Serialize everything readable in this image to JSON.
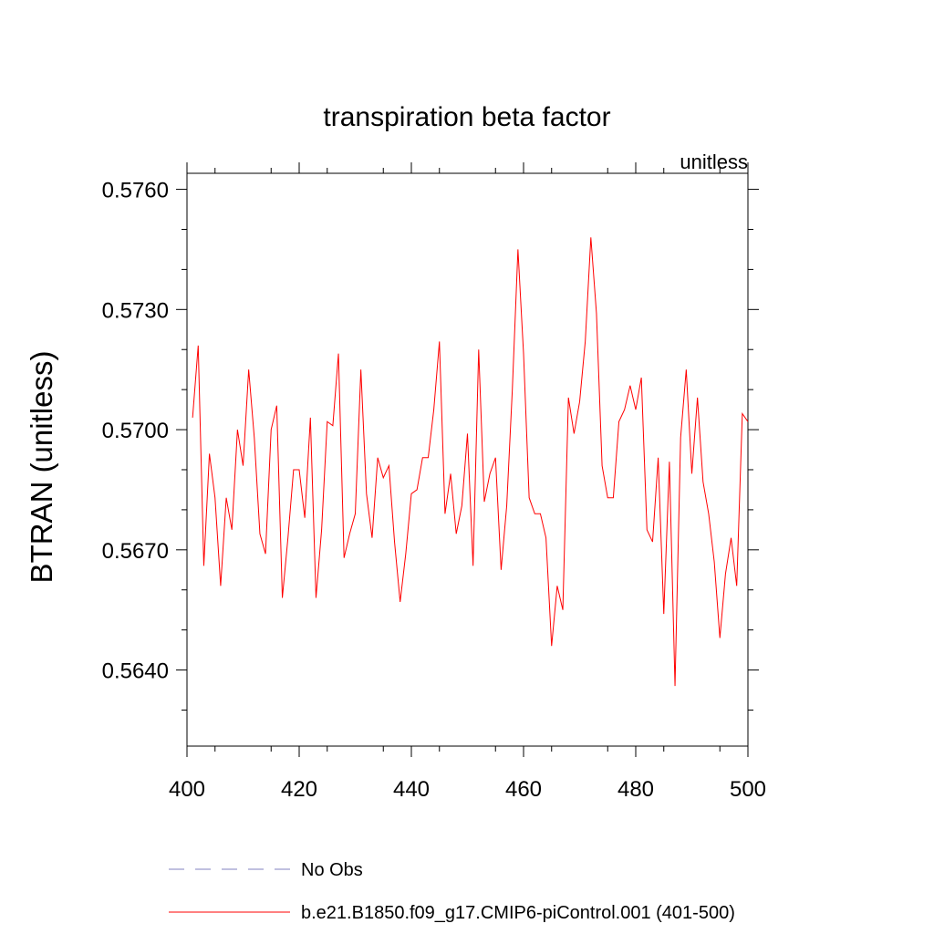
{
  "chart_data": {
    "type": "line",
    "title": "transpiration beta factor",
    "units_label": "unitless",
    "xlabel": "",
    "ylabel": "BTRAN  (unitless)",
    "xlim": [
      400,
      500
    ],
    "ylim": [
      0.5621,
      0.5764
    ],
    "x_ticks": [
      400,
      420,
      440,
      460,
      480,
      500
    ],
    "x_tick_labels": [
      "400",
      "420",
      "440",
      "460",
      "480",
      "500"
    ],
    "y_ticks": [
      0.576,
      0.573,
      0.57,
      0.567,
      0.564
    ],
    "y_tick_labels": [
      "0.5760",
      "0.5730",
      "0.5700",
      "0.5670",
      "0.5640"
    ],
    "grid": false,
    "legend_position": "bottom",
    "legend": [
      {
        "label": "No Obs",
        "color": "#8080c0",
        "style": "dashed"
      },
      {
        "label": "b.e21.B1850.f09_g17.CMIP6-piControl.001 (401-500)",
        "color": "#ff0000",
        "style": "solid"
      }
    ],
    "series": [
      {
        "name": "b.e21.B1850.f09_g17.CMIP6-piControl.001 (401-500)",
        "color": "#ff0000",
        "x": [
          401,
          402,
          403,
          404,
          405,
          406,
          407,
          408,
          409,
          410,
          411,
          412,
          413,
          414,
          415,
          416,
          417,
          418,
          419,
          420,
          421,
          422,
          423,
          424,
          425,
          426,
          427,
          428,
          429,
          430,
          431,
          432,
          433,
          434,
          435,
          436,
          437,
          438,
          439,
          440,
          441,
          442,
          443,
          444,
          445,
          446,
          447,
          448,
          449,
          450,
          451,
          452,
          453,
          454,
          455,
          456,
          457,
          458,
          459,
          460,
          461,
          462,
          463,
          464,
          465,
          466,
          467,
          468,
          469,
          470,
          471,
          472,
          473,
          474,
          475,
          476,
          477,
          478,
          479,
          480,
          481,
          482,
          483,
          484,
          485,
          486,
          487,
          488,
          489,
          490,
          491,
          492,
          493,
          494,
          495,
          496,
          497,
          498,
          499,
          500
        ],
        "values": [
          0.5703,
          0.5721,
          0.5666,
          0.5694,
          0.5683,
          0.5661,
          0.5683,
          0.5675,
          0.57,
          0.5691,
          0.5715,
          0.5698,
          0.5674,
          0.5669,
          0.57,
          0.5706,
          0.5658,
          0.5673,
          0.569,
          0.569,
          0.5678,
          0.5703,
          0.5658,
          0.5675,
          0.5702,
          0.5701,
          0.5719,
          0.5668,
          0.5674,
          0.5679,
          0.5715,
          0.5684,
          0.5673,
          0.5693,
          0.5688,
          0.5691,
          0.5672,
          0.5657,
          0.5669,
          0.5684,
          0.5685,
          0.5693,
          0.5693,
          0.5705,
          0.5722,
          0.5679,
          0.5689,
          0.5674,
          0.5681,
          0.5699,
          0.5666,
          0.572,
          0.5682,
          0.5689,
          0.5693,
          0.5665,
          0.5681,
          0.571,
          0.5745,
          0.5719,
          0.5683,
          0.5679,
          0.5679,
          0.5673,
          0.5646,
          0.5661,
          0.5655,
          0.5708,
          0.5699,
          0.5707,
          0.5722,
          0.5748,
          0.5729,
          0.5691,
          0.5683,
          0.5683,
          0.5702,
          0.5705,
          0.5711,
          0.5705,
          0.5713,
          0.5675,
          0.5672,
          0.5693,
          0.5654,
          0.5692,
          0.5636,
          0.5698,
          0.5715,
          0.5689,
          0.5708,
          0.5687,
          0.5679,
          0.5667,
          0.5648,
          0.5664,
          0.5673,
          0.5661,
          0.5704,
          0.5702
        ]
      }
    ]
  }
}
